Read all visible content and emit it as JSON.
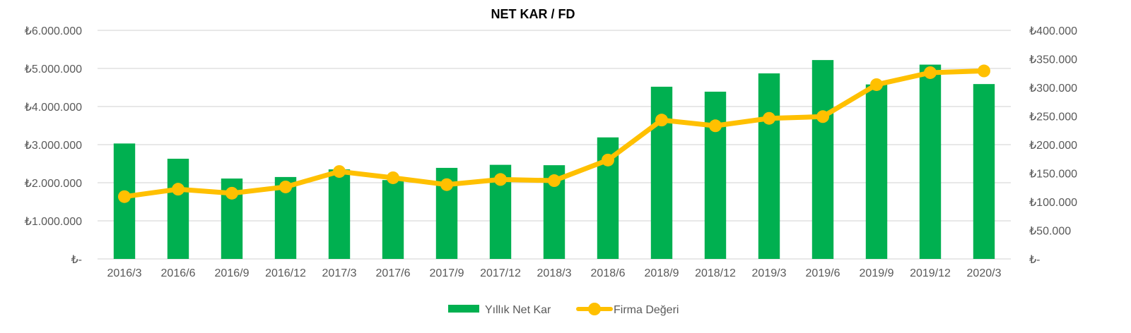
{
  "chart_data": {
    "type": "bar+line",
    "title": "NET KAR / FD",
    "categories": [
      "2016/3",
      "2016/6",
      "2016/9",
      "2016/12",
      "2017/3",
      "2017/6",
      "2017/9",
      "2017/12",
      "2018/3",
      "2018/6",
      "2018/9",
      "2018/12",
      "2019/3",
      "2019/6",
      "2019/9",
      "2019/12",
      "2020/3"
    ],
    "series": [
      {
        "name": "Yıllık Net Kar",
        "kind": "bar",
        "axis": "left",
        "color": "#00B050",
        "values": [
          3030000,
          2630000,
          2110000,
          2150000,
          2350000,
          2070000,
          2390000,
          2470000,
          2460000,
          3190000,
          4520000,
          4390000,
          4870000,
          5220000,
          4580000,
          5100000,
          4590000
        ]
      },
      {
        "name": "Firma Değeri",
        "kind": "line",
        "axis": "right",
        "color": "#FFC000",
        "values": [
          109000,
          122000,
          115000,
          126000,
          153000,
          142000,
          130000,
          139000,
          137000,
          173000,
          243000,
          233000,
          246000,
          249000,
          305000,
          326000,
          329000
        ]
      }
    ],
    "y_left": {
      "min": 0,
      "max": 6000000,
      "ticks": [
        0,
        1000000,
        2000000,
        3000000,
        4000000,
        5000000,
        6000000
      ],
      "tick_labels": [
        "₺-",
        "₺1.000.000",
        "₺2.000.000",
        "₺3.000.000",
        "₺4.000.000",
        "₺5.000.000",
        "₺6.000.000"
      ]
    },
    "y_right": {
      "min": 0,
      "max": 400000,
      "ticks": [
        0,
        50000,
        100000,
        150000,
        200000,
        250000,
        300000,
        350000,
        400000
      ],
      "tick_labels": [
        "₺-",
        "₺50.000",
        "₺100.000",
        "₺150.000",
        "₺200.000",
        "₺250.000",
        "₺300.000",
        "₺350.000",
        "₺400.000"
      ]
    },
    "grid": true,
    "legend": "bottom-center"
  }
}
